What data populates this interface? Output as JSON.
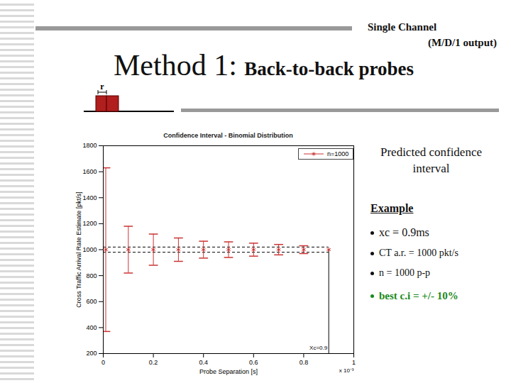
{
  "slide": {
    "header": [
      "Single Channel",
      "(M/D/1 output)"
    ],
    "title": "Method 1:",
    "subtitle": "Back-to-back probes",
    "diagram_label": "r",
    "side_heading": "Predicted confidence interval",
    "example_heading": "Example",
    "example_items": [
      "xc = 0.9ms",
      "CT a.r. = 1000 pkt/s",
      "n = 1000 p-p"
    ],
    "conclusion": "best c.i = +/- 10%"
  },
  "chart_data": {
    "type": "errorbar",
    "title": "Confidence Interval - Binomial Distribution",
    "xlabel": "Probe Separation [s]",
    "ylabel": "Cross Traffic Arrival Rate Estimate [pkt/s]",
    "x_multiplier": "x 10⁻³",
    "x": [
      0.01,
      0.1,
      0.2,
      0.3,
      0.4,
      0.5,
      0.6,
      0.7,
      0.8,
      0.9
    ],
    "series": [
      {
        "name": "n=1000",
        "color": "#cc3333",
        "marker": "asterisk",
        "values": [
          1000,
          1000,
          1000,
          1000,
          1000,
          1000,
          1000,
          1000,
          1000,
          1000
        ],
        "lower": [
          370,
          820,
          880,
          910,
          935,
          940,
          950,
          960,
          970,
          null
        ],
        "upper": [
          1630,
          1180,
          1120,
          1090,
          1065,
          1060,
          1050,
          1040,
          1030,
          null
        ]
      }
    ],
    "reference_lines": [
      980,
      1020
    ],
    "line_style": "dashed",
    "xc_marker": {
      "x": 0.9,
      "label": "Xc=0.9"
    },
    "xlim": [
      0,
      1
    ],
    "xticks": [
      0,
      0.2,
      0.4,
      0.6,
      0.8,
      1
    ],
    "ylim": [
      200,
      1800
    ],
    "yticks": [
      200,
      400,
      600,
      800,
      1000,
      1200,
      1400,
      1600,
      1800
    ],
    "legend": "top-right",
    "grid": false
  }
}
